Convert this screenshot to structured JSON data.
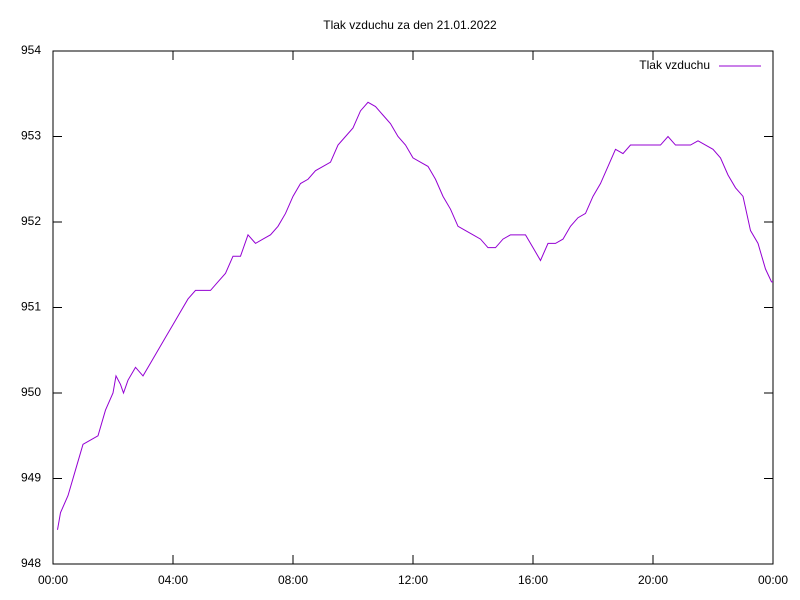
{
  "chart_data": {
    "type": "line",
    "title": "Tlak vzduchu za den 21.01.2022",
    "x": [
      0.15,
      0.25,
      0.5,
      0.75,
      1.0,
      1.25,
      1.5,
      1.75,
      2.0,
      2.1,
      2.25,
      2.35,
      2.5,
      2.75,
      3.0,
      3.25,
      3.5,
      3.75,
      4.0,
      4.25,
      4.5,
      4.75,
      5.0,
      5.25,
      5.5,
      5.75,
      6.0,
      6.25,
      6.5,
      6.75,
      7.0,
      7.25,
      7.5,
      7.75,
      8.0,
      8.25,
      8.5,
      8.75,
      9.0,
      9.25,
      9.5,
      9.75,
      10.0,
      10.25,
      10.5,
      10.75,
      11.0,
      11.25,
      11.5,
      11.75,
      12.0,
      12.25,
      12.5,
      12.75,
      13.0,
      13.25,
      13.5,
      13.75,
      14.0,
      14.25,
      14.5,
      14.75,
      15.0,
      15.25,
      15.5,
      15.75,
      16.0,
      16.25,
      16.5,
      16.75,
      17.0,
      17.25,
      17.5,
      17.75,
      18.0,
      18.25,
      18.5,
      18.75,
      19.0,
      19.25,
      19.5,
      19.75,
      20.0,
      20.25,
      20.5,
      20.75,
      21.0,
      21.25,
      21.5,
      21.75,
      22.0,
      22.25,
      22.5,
      22.75,
      23.0,
      23.25,
      23.5,
      23.75,
      23.95,
      24.0
    ],
    "series": [
      {
        "name": "Tlak vzduchu",
        "color": "#9400d3",
        "values": [
          948.4,
          948.6,
          948.8,
          949.1,
          949.4,
          949.45,
          949.5,
          949.8,
          950.0,
          950.2,
          950.1,
          950.0,
          950.15,
          950.3,
          950.2,
          950.35,
          950.5,
          950.65,
          950.8,
          950.95,
          951.1,
          951.2,
          951.2,
          951.2,
          951.3,
          951.4,
          951.6,
          951.6,
          951.85,
          951.75,
          951.8,
          951.85,
          951.95,
          952.1,
          952.3,
          952.45,
          952.5,
          952.6,
          952.65,
          952.7,
          952.9,
          953.0,
          953.1,
          953.3,
          953.4,
          953.35,
          953.25,
          953.15,
          953.0,
          952.9,
          952.75,
          952.7,
          952.65,
          952.5,
          952.3,
          952.15,
          951.95,
          951.9,
          951.85,
          951.8,
          951.7,
          951.7,
          951.8,
          951.85,
          951.85,
          951.85,
          951.7,
          951.55,
          951.75,
          951.75,
          951.8,
          951.95,
          952.05,
          952.1,
          952.3,
          952.45,
          952.65,
          952.85,
          952.8,
          952.9,
          952.9,
          952.9,
          952.9,
          952.9,
          953.0,
          952.9,
          952.9,
          952.9,
          952.95,
          952.9,
          952.85,
          952.75,
          952.55,
          952.4,
          952.3,
          951.9,
          951.75,
          951.45,
          951.3,
          951.3
        ]
      }
    ],
    "xlim": [
      0,
      24
    ],
    "xticks": [
      {
        "value": 0,
        "label": "00:00"
      },
      {
        "value": 4,
        "label": "04:00"
      },
      {
        "value": 8,
        "label": "08:00"
      },
      {
        "value": 12,
        "label": "12:00"
      },
      {
        "value": 16,
        "label": "16:00"
      },
      {
        "value": 20,
        "label": "20:00"
      },
      {
        "value": 24,
        "label": "00:00"
      }
    ],
    "ylim": [
      948,
      954
    ],
    "yticks": [
      948,
      949,
      950,
      951,
      952,
      953,
      954
    ],
    "legend": "top-right",
    "grid": false
  }
}
